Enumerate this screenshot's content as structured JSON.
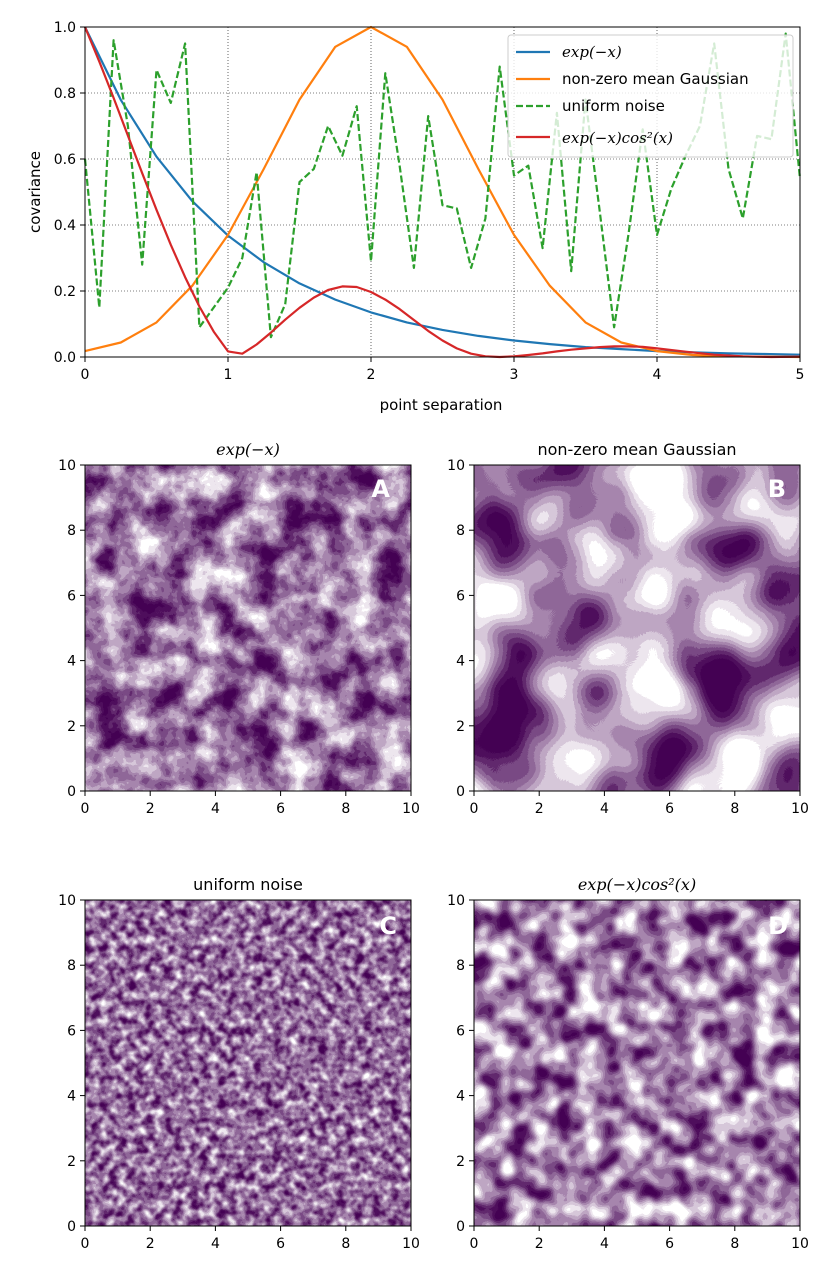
{
  "chart_data": [
    {
      "type": "line",
      "title": "",
      "xlabel": "point separation",
      "ylabel": "covariance",
      "xlim": [
        0,
        5
      ],
      "ylim": [
        0,
        1.0
      ],
      "grid": true,
      "legend_position": "top-right",
      "x_ticks": [
        "0",
        "1",
        "2",
        "3",
        "4",
        "5"
      ],
      "y_ticks": [
        "0.0",
        "0.2",
        "0.4",
        "0.6",
        "0.8",
        "1.0"
      ],
      "series": [
        {
          "name": "exp(−x)",
          "color": "#1f77b4",
          "style": "solid",
          "x": [
            0,
            0.25,
            0.5,
            0.75,
            1,
            1.25,
            1.5,
            1.75,
            2,
            2.25,
            2.5,
            2.75,
            3,
            3.25,
            3.5,
            3.75,
            4,
            4.25,
            4.5,
            4.75,
            5
          ],
          "y": [
            1.0,
            0.779,
            0.607,
            0.472,
            0.368,
            0.287,
            0.223,
            0.174,
            0.135,
            0.105,
            0.082,
            0.064,
            0.05,
            0.039,
            0.03,
            0.024,
            0.018,
            0.014,
            0.011,
            0.009,
            0.007
          ]
        },
        {
          "name": "non-zero mean Gaussian",
          "color": "#ff7f0e",
          "style": "solid",
          "x": [
            0,
            0.25,
            0.5,
            0.75,
            1,
            1.25,
            1.5,
            1.75,
            2,
            2.25,
            2.5,
            2.75,
            3,
            3.25,
            3.5,
            3.75,
            4,
            4.25,
            4.5,
            4.75,
            5
          ],
          "y": [
            0.018,
            0.044,
            0.105,
            0.216,
            0.37,
            0.57,
            0.78,
            0.94,
            1.0,
            0.94,
            0.78,
            0.57,
            0.37,
            0.216,
            0.105,
            0.044,
            0.018,
            0.006,
            0.002,
            0.001,
            0.0
          ]
        },
        {
          "name": "uniform noise",
          "color": "#2ca02c",
          "style": "dashed",
          "x": [
            0,
            0.1,
            0.2,
            0.3,
            0.4,
            0.5,
            0.6,
            0.7,
            0.8,
            0.9,
            1.0,
            1.1,
            1.2,
            1.3,
            1.4,
            1.5,
            1.6,
            1.7,
            1.8,
            1.9,
            2.0,
            2.1,
            2.2,
            2.3,
            2.4,
            2.5,
            2.6,
            2.7,
            2.8,
            2.9,
            3.0,
            3.1,
            3.2,
            3.3,
            3.4,
            3.5,
            3.6,
            3.7,
            3.8,
            3.9,
            4.0,
            4.1,
            4.2,
            4.3,
            4.4,
            4.5,
            4.6,
            4.7,
            4.8,
            4.9,
            5.0
          ],
          "y": [
            0.6,
            0.15,
            0.96,
            0.7,
            0.28,
            0.87,
            0.77,
            0.95,
            0.09,
            0.15,
            0.21,
            0.3,
            0.56,
            0.06,
            0.16,
            0.53,
            0.57,
            0.7,
            0.61,
            0.76,
            0.29,
            0.86,
            0.58,
            0.27,
            0.73,
            0.46,
            0.45,
            0.27,
            0.42,
            0.88,
            0.55,
            0.58,
            0.33,
            0.74,
            0.26,
            0.78,
            0.44,
            0.09,
            0.37,
            0.69,
            0.37,
            0.51,
            0.61,
            0.7,
            0.95,
            0.57,
            0.42,
            0.67,
            0.66,
            0.98,
            0.54
          ]
        },
        {
          "name": "exp(−x)cos²(x)",
          "color": "#d62728",
          "style": "solid",
          "x": [
            0,
            0.1,
            0.2,
            0.3,
            0.4,
            0.5,
            0.6,
            0.7,
            0.8,
            0.9,
            1.0,
            1.1,
            1.2,
            1.3,
            1.4,
            1.5,
            1.6,
            1.7,
            1.8,
            1.9,
            2.0,
            2.1,
            2.2,
            2.3,
            2.4,
            2.5,
            2.6,
            2.7,
            2.8,
            2.9,
            3.0,
            3.1,
            3.2,
            3.3,
            3.4,
            3.5,
            3.6,
            3.7,
            3.8,
            3.9,
            4.0,
            4.2,
            4.4,
            4.6,
            4.8,
            5.0
          ],
          "y": [
            1.0,
            0.895,
            0.785,
            0.671,
            0.557,
            0.446,
            0.34,
            0.242,
            0.153,
            0.077,
            0.017,
            0.01,
            0.038,
            0.074,
            0.113,
            0.149,
            0.18,
            0.203,
            0.214,
            0.212,
            0.197,
            0.174,
            0.145,
            0.112,
            0.079,
            0.05,
            0.026,
            0.01,
            0.002,
            0.0,
            0.002,
            0.006,
            0.011,
            0.017,
            0.022,
            0.026,
            0.03,
            0.032,
            0.032,
            0.031,
            0.026,
            0.016,
            0.007,
            0.002,
            0.0,
            0.001
          ]
        }
      ]
    },
    {
      "type": "heatmap",
      "title": "exp(−x)",
      "badge": "A",
      "xlim": [
        0,
        10
      ],
      "ylim": [
        0,
        10
      ],
      "x_ticks": [
        "0",
        "2",
        "4",
        "6",
        "8",
        "10"
      ],
      "y_ticks": [
        "0",
        "2",
        "4",
        "6",
        "8",
        "10"
      ],
      "colormap": "viridis"
    },
    {
      "type": "heatmap",
      "title": "non-zero mean Gaussian",
      "badge": "B",
      "xlim": [
        0,
        10
      ],
      "ylim": [
        0,
        10
      ],
      "x_ticks": [
        "0",
        "2",
        "4",
        "6",
        "8",
        "10"
      ],
      "y_ticks": [
        "0",
        "2",
        "4",
        "6",
        "8",
        "10"
      ],
      "colormap": "viridis"
    },
    {
      "type": "heatmap",
      "title": "uniform noise",
      "badge": "C",
      "xlim": [
        0,
        10
      ],
      "ylim": [
        0,
        10
      ],
      "x_ticks": [
        "0",
        "2",
        "4",
        "6",
        "8",
        "10"
      ],
      "y_ticks": [
        "0",
        "2",
        "4",
        "6",
        "8",
        "10"
      ],
      "colormap": "viridis"
    },
    {
      "type": "heatmap",
      "title": "exp(−x)cos²(x)",
      "badge": "D",
      "xlim": [
        0,
        10
      ],
      "ylim": [
        0,
        10
      ],
      "x_ticks": [
        "0",
        "2",
        "4",
        "6",
        "8",
        "10"
      ],
      "y_ticks": [
        "0",
        "2",
        "4",
        "6",
        "8",
        "10"
      ],
      "colormap": "viridis"
    }
  ]
}
